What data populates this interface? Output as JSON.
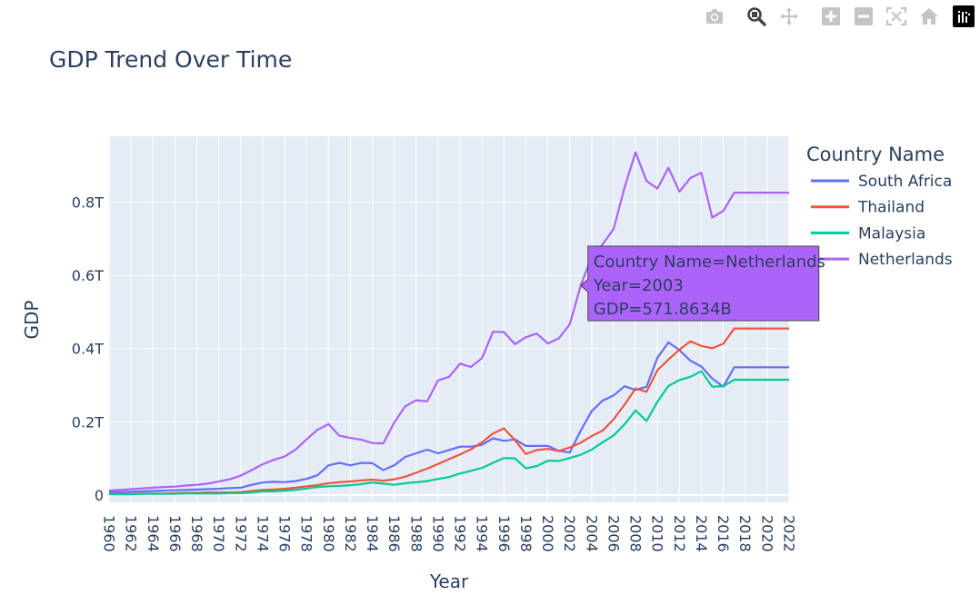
{
  "modebar": {
    "buttons": [
      {
        "icon": "camera-icon",
        "name": "download-plot-button"
      },
      {
        "icon": "zoom-icon",
        "name": "zoom-button"
      },
      {
        "icon": "pan-icon",
        "name": "pan-button"
      },
      {
        "icon": "zoom-in-icon",
        "name": "zoom-in-button"
      },
      {
        "icon": "zoom-out-icon",
        "name": "zoom-out-button"
      },
      {
        "icon": "autoscale-icon",
        "name": "autoscale-button"
      },
      {
        "icon": "home-icon",
        "name": "reset-axes-button"
      },
      {
        "icon": "plotly-logo-icon",
        "name": "plotly-logo"
      }
    ]
  },
  "chart_data": {
    "type": "line",
    "title": "GDP Trend Over Time",
    "xlabel": "Year",
    "ylabel": "GDP",
    "xlim": [
      1960,
      2022
    ],
    "ylim": [
      -0.02,
      0.98
    ],
    "y_unit": "trillion USD",
    "yticks": [
      {
        "value": 0,
        "label": "0"
      },
      {
        "value": 0.2,
        "label": "0.2T"
      },
      {
        "value": 0.4,
        "label": "0.4T"
      },
      {
        "value": 0.6,
        "label": "0.6T"
      },
      {
        "value": 0.8,
        "label": "0.8T"
      }
    ],
    "xticks": [
      1960,
      1962,
      1964,
      1966,
      1968,
      1970,
      1972,
      1974,
      1976,
      1978,
      1980,
      1982,
      1984,
      1986,
      1988,
      1990,
      1992,
      1994,
      1996,
      1998,
      2000,
      2002,
      2004,
      2006,
      2008,
      2010,
      2012,
      2014,
      2016,
      2018,
      2020,
      2022
    ],
    "grid": true,
    "legend": {
      "title": "Country Name",
      "placement": "right"
    },
    "x": [
      1960,
      1961,
      1962,
      1963,
      1964,
      1965,
      1966,
      1967,
      1968,
      1969,
      1970,
      1971,
      1972,
      1973,
      1974,
      1975,
      1976,
      1977,
      1978,
      1979,
      1980,
      1981,
      1982,
      1983,
      1984,
      1985,
      1986,
      1987,
      1988,
      1989,
      1990,
      1991,
      1992,
      1993,
      1994,
      1995,
      1996,
      1997,
      1998,
      1999,
      2000,
      2001,
      2002,
      2003,
      2004,
      2005,
      2006,
      2007,
      2008,
      2009,
      2010,
      2011,
      2012,
      2013,
      2014,
      2015,
      2016,
      2017,
      2018,
      2019,
      2020,
      2021,
      2022
    ],
    "series": [
      {
        "name": "South Africa",
        "color": "#636efa",
        "values": [
          0.008,
          0.008,
          0.009,
          0.01,
          0.011,
          0.012,
          0.013,
          0.014,
          0.015,
          0.016,
          0.017,
          0.019,
          0.02,
          0.028,
          0.034,
          0.036,
          0.035,
          0.038,
          0.044,
          0.054,
          0.081,
          0.088,
          0.081,
          0.088,
          0.087,
          0.068,
          0.081,
          0.104,
          0.114,
          0.124,
          0.114,
          0.123,
          0.132,
          0.132,
          0.137,
          0.155,
          0.148,
          0.152,
          0.134,
          0.134,
          0.134,
          0.121,
          0.116,
          0.176,
          0.229,
          0.258,
          0.272,
          0.297,
          0.287,
          0.296,
          0.375,
          0.417,
          0.396,
          0.367,
          0.351,
          0.318,
          0.296,
          0.349,
          0.349,
          0.349,
          0.349,
          0.349,
          0.349
        ]
      },
      {
        "name": "Thailand",
        "color": "#ef553b",
        "values": [
          0.003,
          0.003,
          0.003,
          0.004,
          0.004,
          0.004,
          0.005,
          0.006,
          0.006,
          0.007,
          0.007,
          0.007,
          0.008,
          0.011,
          0.014,
          0.015,
          0.017,
          0.02,
          0.024,
          0.027,
          0.032,
          0.035,
          0.037,
          0.04,
          0.042,
          0.039,
          0.043,
          0.05,
          0.061,
          0.072,
          0.085,
          0.098,
          0.111,
          0.125,
          0.144,
          0.168,
          0.182,
          0.15,
          0.112,
          0.123,
          0.126,
          0.12,
          0.13,
          0.143,
          0.161,
          0.176,
          0.207,
          0.247,
          0.291,
          0.282,
          0.341,
          0.37,
          0.397,
          0.42,
          0.407,
          0.401,
          0.413,
          0.455,
          0.455,
          0.455,
          0.455,
          0.455,
          0.455
        ]
      },
      {
        "name": "Malaysia",
        "color": "#00cc96",
        "values": [
          0.002,
          0.002,
          0.002,
          0.003,
          0.003,
          0.003,
          0.003,
          0.004,
          0.004,
          0.004,
          0.004,
          0.005,
          0.005,
          0.007,
          0.01,
          0.01,
          0.012,
          0.014,
          0.018,
          0.022,
          0.024,
          0.025,
          0.027,
          0.03,
          0.034,
          0.031,
          0.028,
          0.032,
          0.035,
          0.038,
          0.044,
          0.049,
          0.059,
          0.066,
          0.074,
          0.088,
          0.101,
          0.1,
          0.073,
          0.079,
          0.094,
          0.093,
          0.101,
          0.11,
          0.124,
          0.144,
          0.163,
          0.193,
          0.231,
          0.202,
          0.255,
          0.298,
          0.314,
          0.323,
          0.338,
          0.296,
          0.297,
          0.315,
          0.315,
          0.315,
          0.315,
          0.315,
          0.315
        ]
      },
      {
        "name": "Netherlands",
        "color": "#ab63fa",
        "values": [
          0.012,
          0.014,
          0.016,
          0.018,
          0.02,
          0.022,
          0.023,
          0.026,
          0.028,
          0.031,
          0.037,
          0.043,
          0.053,
          0.068,
          0.084,
          0.096,
          0.105,
          0.124,
          0.152,
          0.178,
          0.194,
          0.162,
          0.156,
          0.151,
          0.142,
          0.141,
          0.198,
          0.242,
          0.259,
          0.256,
          0.313,
          0.323,
          0.359,
          0.35,
          0.374,
          0.446,
          0.445,
          0.412,
          0.431,
          0.441,
          0.414,
          0.428,
          0.466,
          0.572,
          0.651,
          0.685,
          0.727,
          0.84,
          0.936,
          0.858,
          0.837,
          0.894,
          0.829,
          0.866,
          0.88,
          0.758,
          0.776,
          0.826,
          0.826,
          0.826,
          0.826,
          0.826,
          0.826
        ]
      }
    ],
    "hover": {
      "series": "Netherlands",
      "x": 2003,
      "lines": [
        "Country Name=Netherlands",
        "Year=2003",
        "GDP=571.8634B"
      ]
    }
  }
}
